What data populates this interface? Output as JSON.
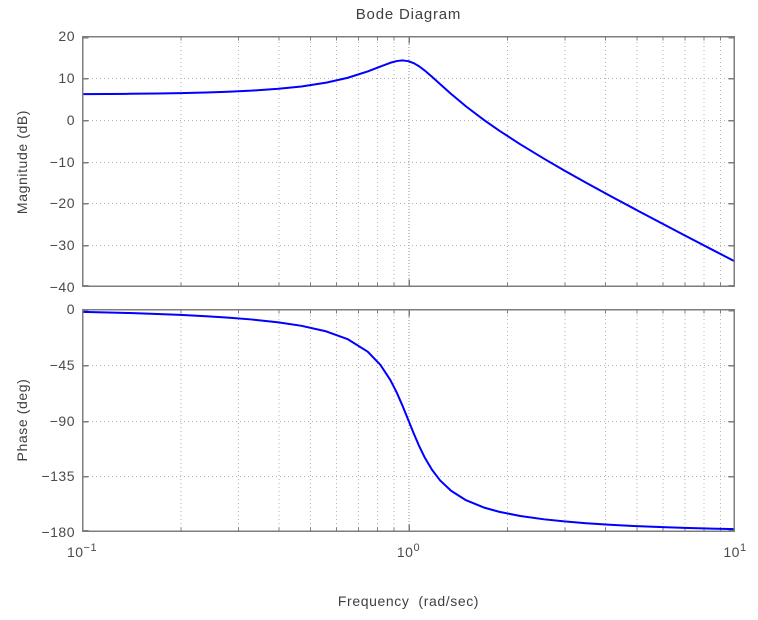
{
  "figure": {
    "colors": {
      "curve": "#0000ff",
      "grid_minor": "#b3b3b3",
      "grid_major": "#8c8c8c",
      "frame": "#7d7d7d",
      "text": "#4a4a4a",
      "background": "#ffffff"
    }
  },
  "chart_data": {
    "type": "line",
    "title": "Bode Diagram",
    "xlabel": "Frequency  (rad/sec)",
    "x_scale": "log",
    "xlim": [
      0.1,
      10
    ],
    "grid": true,
    "legend": "none",
    "line_color": "#0000ff",
    "x_ticks": [
      {
        "base": "10",
        "exponent": "-1"
      },
      {
        "base": "10",
        "exponent": "0"
      },
      {
        "base": "10",
        "exponent": "1"
      }
    ],
    "x_grid_minor": [
      0.2,
      0.3,
      0.4,
      0.5,
      0.6,
      0.7,
      0.8,
      0.9,
      2,
      3,
      4,
      5,
      6,
      7,
      8,
      9
    ],
    "x_grid_major": [
      1
    ],
    "subplots": [
      {
        "name": "magnitude",
        "ylabel": "Magnitude (dB)",
        "ylim": [
          -40,
          20
        ],
        "yticks": [
          20,
          10,
          0,
          -10,
          -20,
          -30,
          -40
        ],
        "grid_y": [
          10,
          0,
          -10,
          -20,
          -30
        ],
        "x": [
          0.1,
          0.12,
          0.14,
          0.17,
          0.2,
          0.24,
          0.28,
          0.33,
          0.4,
          0.47,
          0.56,
          0.65,
          0.75,
          0.82,
          0.88,
          0.92,
          0.96,
          1.0,
          1.04,
          1.08,
          1.12,
          1.18,
          1.25,
          1.35,
          1.5,
          1.7,
          1.9,
          2.2,
          2.6,
          3.0,
          3.5,
          4.2,
          5.0,
          6.0,
          7.0,
          8.5,
          10.0
        ],
        "y": [
          6.1,
          6.14,
          6.18,
          6.25,
          6.35,
          6.49,
          6.67,
          6.93,
          7.38,
          7.94,
          8.85,
          9.99,
          11.53,
          12.7,
          13.6,
          14.01,
          14.16,
          13.98,
          13.47,
          12.71,
          11.78,
          10.26,
          8.49,
          6.16,
          3.18,
          -0.04,
          -2.67,
          -5.89,
          -9.33,
          -12.14,
          -15.07,
          -18.45,
          -21.61,
          -24.88,
          -27.62,
          -31.05,
          -33.9
        ]
      },
      {
        "name": "phase",
        "ylabel": "Phase (deg)",
        "ylim": [
          -180,
          0
        ],
        "yticks": [
          0,
          -45,
          -90,
          -135,
          -180
        ],
        "grid_y": [
          -45,
          -90,
          -135
        ],
        "x": [
          0.1,
          0.12,
          0.14,
          0.17,
          0.2,
          0.24,
          0.28,
          0.33,
          0.4,
          0.47,
          0.56,
          0.65,
          0.75,
          0.82,
          0.88,
          0.92,
          0.96,
          1.0,
          1.04,
          1.08,
          1.12,
          1.18,
          1.25,
          1.35,
          1.5,
          1.7,
          1.9,
          2.2,
          2.6,
          3.0,
          3.5,
          4.2,
          5.0,
          6.0,
          7.0,
          8.5,
          10.0
        ],
        "y": [
          -2.31,
          -2.79,
          -3.27,
          -4.01,
          -4.76,
          -5.82,
          -6.93,
          -8.43,
          -10.78,
          -13.57,
          -18.07,
          -24.23,
          -34.44,
          -45.03,
          -57.35,
          -67.35,
          -78.46,
          -90.0,
          -101.06,
          -111.06,
          -119.62,
          -129.73,
          -138.37,
          -146.71,
          -154.36,
          -160.21,
          -163.77,
          -167.09,
          -169.76,
          -171.47,
          -172.91,
          -174.23,
          -175.24,
          -176.08,
          -176.66,
          -177.27,
          -177.69
        ]
      }
    ]
  }
}
